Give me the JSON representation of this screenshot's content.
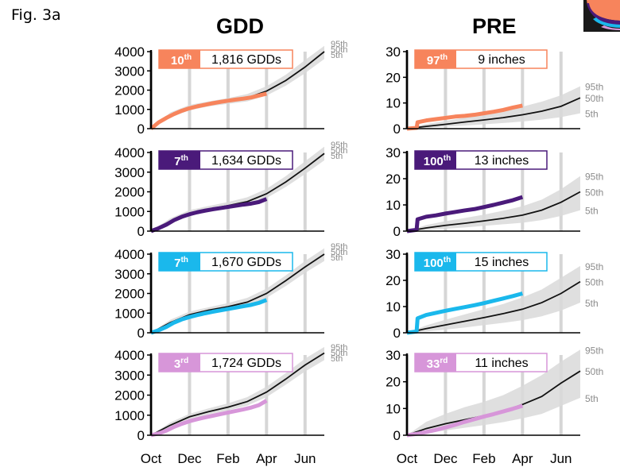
{
  "figure": {
    "label": "Fig. 3a"
  },
  "columns": [
    {
      "title": "GDD"
    },
    {
      "title": "PRE"
    }
  ],
  "chart_data": {
    "type": "line",
    "x_ticks": [
      "Oct",
      "Dec",
      "Feb",
      "Apr",
      "Jun"
    ],
    "percentile_labels": [
      "95th",
      "50th",
      "5th"
    ],
    "panels": [
      {
        "variable": "GDD",
        "row": 1,
        "color": "#f7845c",
        "ylim": [
          0,
          4000
        ],
        "yticks": [
          "4000",
          "3000",
          "2000",
          "1000",
          "0"
        ],
        "badge": {
          "rank": "10",
          "suffix": "th",
          "value": "1,816 GDDs"
        },
        "observed": {
          "x": [
            0,
            0.4,
            0.8,
            1.2,
            1.6,
            2.0,
            2.4,
            2.8,
            3.2,
            3.6,
            4.0,
            4.4,
            4.8,
            5.2,
            5.6,
            6.0
          ],
          "y": [
            0,
            330,
            560,
            760,
            930,
            1060,
            1160,
            1240,
            1320,
            1390,
            1450,
            1510,
            1560,
            1620,
            1720,
            1816
          ]
        },
        "median": {
          "x": [
            0,
            1,
            2,
            3,
            4,
            5,
            6,
            7,
            8,
            9
          ],
          "y": [
            0,
            700,
            1080,
            1280,
            1420,
            1600,
            1950,
            2500,
            3200,
            4000
          ]
        },
        "band": {
          "x": [
            0,
            1,
            2,
            3,
            4,
            5,
            6,
            7,
            8,
            9
          ],
          "lo": [
            0,
            580,
            950,
            1160,
            1290,
            1420,
            1720,
            2230,
            2880,
            3620
          ],
          "hi": [
            0,
            840,
            1230,
            1420,
            1590,
            1800,
            2200,
            2800,
            3560,
            4300
          ]
        }
      },
      {
        "variable": "PRE",
        "row": 1,
        "color": "#f7845c",
        "ylim": [
          0,
          30
        ],
        "yticks": [
          "30",
          "20",
          "10",
          "0"
        ],
        "badge": {
          "rank": "97",
          "suffix": "th",
          "value": "9 inches"
        },
        "observed": {
          "x": [
            0,
            0.5,
            0.55,
            1.0,
            1.5,
            2.0,
            2.5,
            3.0,
            3.5,
            4.0,
            4.5,
            5.0,
            5.5,
            6.0
          ],
          "y": [
            0,
            0.3,
            2.5,
            3.2,
            3.7,
            4.2,
            4.7,
            5.0,
            5.4,
            6.0,
            6.6,
            7.3,
            8.2,
            9
          ]
        },
        "median": {
          "x": [
            0,
            1,
            2,
            3,
            4,
            5,
            6,
            7,
            8,
            9
          ],
          "y": [
            0,
            0.9,
            1.7,
            2.6,
            3.4,
            4.3,
            5.4,
            6.8,
            8.7,
            12
          ]
        },
        "band": {
          "x": [
            0,
            1,
            2,
            3,
            4,
            5,
            6,
            7,
            8,
            9
          ],
          "lo": [
            0,
            0.3,
            0.8,
            1.2,
            1.7,
            2.2,
            2.8,
            3.5,
            4.5,
            6
          ],
          "hi": [
            0,
            1.8,
            3.0,
            4.3,
            5.6,
            7.0,
            8.6,
            10.5,
            13,
            16.5
          ]
        }
      },
      {
        "variable": "GDD",
        "row": 2,
        "color": "#4a1a7a",
        "ylim": [
          0,
          4000
        ],
        "yticks": [
          "4000",
          "3000",
          "2000",
          "1000",
          "0"
        ],
        "badge": {
          "rank": "7",
          "suffix": "th",
          "value": "1,634 GDDs"
        },
        "observed": {
          "x": [
            0,
            0.4,
            0.8,
            1.2,
            1.6,
            2.0,
            2.4,
            2.8,
            3.2,
            3.6,
            4.0,
            4.4,
            4.8,
            5.2,
            5.6,
            6.0
          ],
          "y": [
            0,
            150,
            330,
            560,
            730,
            860,
            960,
            1040,
            1110,
            1170,
            1230,
            1290,
            1350,
            1400,
            1480,
            1634
          ]
        },
        "median": {
          "x": [
            0,
            1,
            2,
            3,
            4,
            5,
            6,
            7,
            8,
            9
          ],
          "y": [
            0,
            500,
            900,
            1120,
            1300,
            1500,
            1900,
            2500,
            3200,
            3950
          ]
        },
        "band": {
          "x": [
            0,
            1,
            2,
            3,
            4,
            5,
            6,
            7,
            8,
            9
          ],
          "lo": [
            0,
            380,
            770,
            1000,
            1160,
            1330,
            1680,
            2250,
            2900,
            3600
          ],
          "hi": [
            0,
            650,
            1070,
            1280,
            1480,
            1720,
            2150,
            2800,
            3550,
            4300
          ]
        }
      },
      {
        "variable": "PRE",
        "row": 2,
        "color": "#4a1a7a",
        "ylim": [
          0,
          30
        ],
        "yticks": [
          "30",
          "20",
          "10",
          "0"
        ],
        "badge": {
          "rank": "100",
          "suffix": "th",
          "value": "13 inches"
        },
        "observed": {
          "x": [
            0,
            0.5,
            0.55,
            1.0,
            1.5,
            2.0,
            2.5,
            3.0,
            3.5,
            4.0,
            4.5,
            5.0,
            5.5,
            6.0
          ],
          "y": [
            0,
            0.5,
            4.5,
            5.5,
            6.0,
            6.7,
            7.3,
            7.9,
            8.4,
            9.2,
            10.0,
            10.9,
            11.8,
            13
          ]
        },
        "median": {
          "x": [
            0,
            1,
            2,
            3,
            4,
            5,
            6,
            7,
            8,
            9
          ],
          "y": [
            0,
            1.2,
            2.2,
            3.0,
            3.9,
            4.9,
            6.1,
            8.0,
            11.0,
            15
          ]
        },
        "band": {
          "x": [
            0,
            1,
            2,
            3,
            4,
            5,
            6,
            7,
            8,
            9
          ],
          "lo": [
            0,
            0.4,
            0.9,
            1.4,
            2.0,
            2.6,
            3.2,
            4.2,
            5.8,
            8
          ],
          "hi": [
            0,
            2.3,
            3.8,
            5.0,
            6.3,
            7.8,
            9.5,
            12.0,
            16,
            21
          ]
        }
      },
      {
        "variable": "GDD",
        "row": 3,
        "color": "#1ab8ec",
        "ylim": [
          0,
          4000
        ],
        "yticks": [
          "4000",
          "3000",
          "2000",
          "1000",
          "0"
        ],
        "badge": {
          "rank": "7",
          "suffix": "th",
          "value": "1,670 GDDs"
        },
        "observed": {
          "x": [
            0,
            0.4,
            0.8,
            1.2,
            1.6,
            2.0,
            2.4,
            2.8,
            3.2,
            3.6,
            4.0,
            4.4,
            4.8,
            5.2,
            5.6,
            6.0
          ],
          "y": [
            0,
            130,
            300,
            520,
            680,
            800,
            900,
            990,
            1070,
            1140,
            1210,
            1280,
            1350,
            1420,
            1520,
            1670
          ]
        },
        "median": {
          "x": [
            0,
            1,
            2,
            3,
            4,
            5,
            6,
            7,
            8,
            9
          ],
          "y": [
            0,
            520,
            920,
            1150,
            1330,
            1560,
            2000,
            2650,
            3350,
            4000
          ]
        },
        "band": {
          "x": [
            0,
            1,
            2,
            3,
            4,
            5,
            6,
            7,
            8,
            9
          ],
          "lo": [
            0,
            400,
            790,
            1020,
            1180,
            1380,
            1780,
            2380,
            3050,
            3650
          ],
          "hi": [
            0,
            660,
            1080,
            1300,
            1510,
            1780,
            2250,
            2920,
            3650,
            4300
          ]
        }
      },
      {
        "variable": "PRE",
        "row": 3,
        "color": "#1ab8ec",
        "ylim": [
          0,
          30
        ],
        "yticks": [
          "30",
          "20",
          "10",
          "0"
        ],
        "badge": {
          "rank": "100",
          "suffix": "th",
          "value": "15 inches"
        },
        "observed": {
          "x": [
            0,
            0.5,
            0.55,
            1.0,
            1.5,
            2.0,
            2.5,
            3.0,
            3.5,
            4.0,
            4.5,
            5.0,
            5.5,
            6.0
          ],
          "y": [
            0,
            0.5,
            5.5,
            6.8,
            7.6,
            8.4,
            9.1,
            9.8,
            10.5,
            11.3,
            12.2,
            13.1,
            14.0,
            15
          ]
        },
        "median": {
          "x": [
            0,
            1,
            2,
            3,
            4,
            5,
            6,
            7,
            8,
            9
          ],
          "y": [
            0,
            1.6,
            3.0,
            4.4,
            5.8,
            7.3,
            9.0,
            11.5,
            15.0,
            19.5
          ]
        },
        "band": {
          "x": [
            0,
            1,
            2,
            3,
            4,
            5,
            6,
            7,
            8,
            9
          ],
          "lo": [
            0,
            0.5,
            1.2,
            2.0,
            2.9,
            3.8,
            4.8,
            6.3,
            8.5,
            11.5
          ],
          "hi": [
            0,
            2.8,
            5.0,
            7.0,
            9.0,
            11.0,
            13.5,
            16.5,
            21,
            25.5
          ]
        }
      },
      {
        "variable": "GDD",
        "row": 4,
        "color": "#d796d9",
        "ylim": [
          0,
          4000
        ],
        "yticks": [
          "4000",
          "3000",
          "2000",
          "1000",
          "0"
        ],
        "badge": {
          "rank": "3",
          "suffix": "rd",
          "value": "1,724 GDDs"
        },
        "observed": {
          "x": [
            0,
            0.4,
            0.8,
            1.2,
            1.6,
            2.0,
            2.4,
            2.8,
            3.2,
            3.6,
            4.0,
            4.4,
            4.8,
            5.2,
            5.6,
            6.0
          ],
          "y": [
            0,
            90,
            230,
            420,
            570,
            700,
            800,
            890,
            970,
            1050,
            1130,
            1210,
            1290,
            1380,
            1500,
            1724
          ]
        },
        "median": {
          "x": [
            0,
            1,
            2,
            3,
            4,
            5,
            6,
            7,
            8,
            9
          ],
          "y": [
            0,
            500,
            920,
            1180,
            1400,
            1680,
            2150,
            2800,
            3500,
            4100
          ]
        },
        "band": {
          "x": [
            0,
            1,
            2,
            3,
            4,
            5,
            6,
            7,
            8,
            9
          ],
          "lo": [
            0,
            390,
            790,
            1040,
            1240,
            1480,
            1900,
            2520,
            3180,
            3750
          ],
          "hi": [
            0,
            640,
            1070,
            1340,
            1590,
            1900,
            2420,
            3100,
            3820,
            4400
          ]
        }
      },
      {
        "variable": "PRE",
        "row": 4,
        "color": "#d796d9",
        "ylim": [
          0,
          30
        ],
        "yticks": [
          "30",
          "20",
          "10",
          "0"
        ],
        "badge": {
          "rank": "33",
          "suffix": "rd",
          "value": "11 inches"
        },
        "observed": {
          "x": [
            0,
            0.5,
            1.0,
            1.5,
            2.0,
            2.5,
            3.0,
            3.5,
            4.0,
            4.5,
            5.0,
            5.5,
            6.0
          ],
          "y": [
            0,
            0.5,
            1.2,
            2.0,
            2.9,
            3.9,
            5.0,
            6.0,
            7.0,
            7.9,
            8.9,
            9.9,
            11
          ]
        },
        "median": {
          "x": [
            0,
            1,
            2,
            3,
            4,
            5,
            6,
            7,
            8,
            9
          ],
          "y": [
            0,
            2.5,
            4.3,
            5.8,
            7.3,
            9.0,
            11.5,
            14.5,
            19.5,
            24
          ]
        },
        "band": {
          "x": [
            0,
            1,
            2,
            3,
            4,
            5,
            6,
            7,
            8,
            9
          ],
          "lo": [
            0,
            0.8,
            1.8,
            2.8,
            3.8,
            4.9,
            6.3,
            8.0,
            11.0,
            14.0
          ],
          "hi": [
            0,
            5.0,
            8.0,
            10.5,
            12.5,
            15.0,
            18.5,
            22.5,
            27.5,
            32
          ]
        }
      }
    ]
  }
}
